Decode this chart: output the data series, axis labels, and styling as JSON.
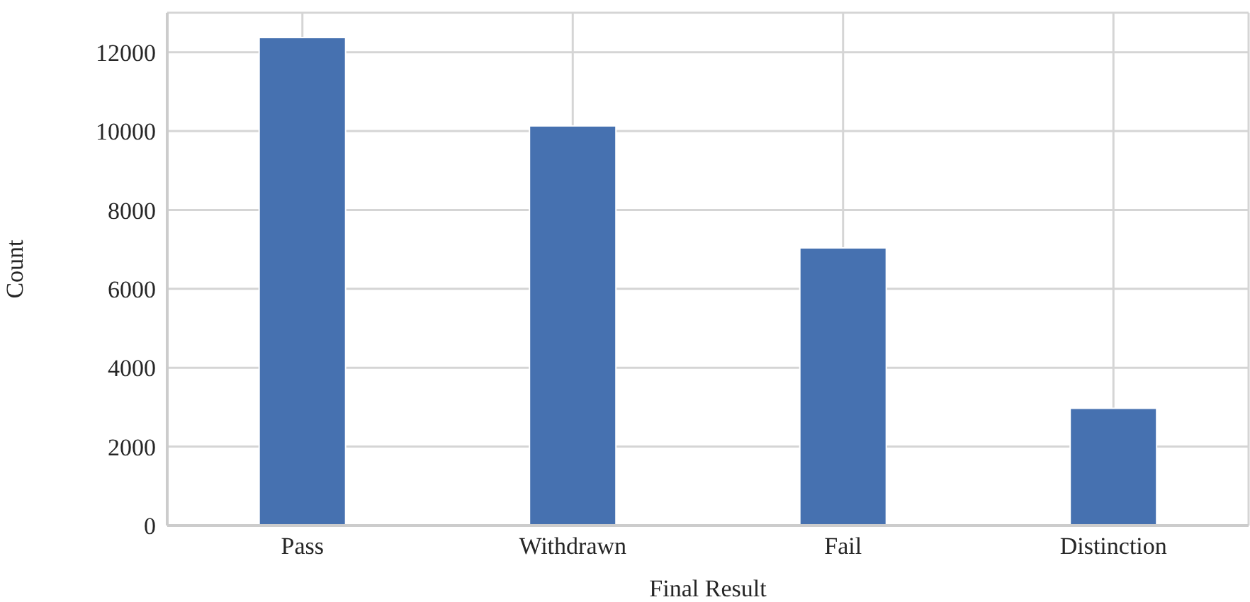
{
  "chart_data": {
    "type": "bar",
    "xlabel": "Final Result",
    "ylabel": "Count",
    "categories": [
      "Pass",
      "Withdrawn",
      "Fail",
      "Distinction"
    ],
    "values": [
      12370,
      10130,
      7040,
      2970
    ],
    "color": "#4671b0",
    "ylim": [
      0,
      13000
    ],
    "yticks": [
      0,
      2000,
      4000,
      6000,
      8000,
      10000,
      12000
    ],
    "grid": true
  }
}
